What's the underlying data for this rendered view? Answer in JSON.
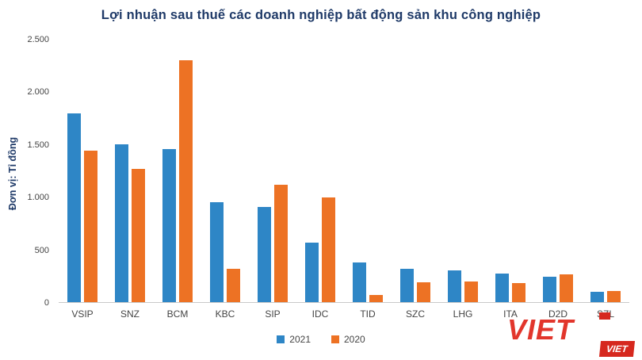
{
  "title": "Lợi nhuận sau thuế các doanh nghiệp bất động sản khu công nghiệp",
  "ylabel": "Đơn vị: Tỉ đồng",
  "chart_data": {
    "type": "bar",
    "categories": [
      "VSIP",
      "SNZ",
      "BCM",
      "KBC",
      "SIP",
      "IDC",
      "TID",
      "SZC",
      "LHG",
      "ITA",
      "D2D",
      "SZL"
    ],
    "series": [
      {
        "name": "2021",
        "color": "#2e86c6",
        "values": [
          1800,
          1500,
          1460,
          950,
          910,
          570,
          380,
          320,
          300,
          270,
          245,
          100
        ]
      },
      {
        "name": "2020",
        "color": "#ed7224",
        "values": [
          1440,
          1270,
          2300,
          320,
          1120,
          1000,
          70,
          190,
          200,
          180,
          265,
          105
        ]
      }
    ],
    "title": "Lợi nhuận sau thuế các doanh nghiệp bất động sản khu công nghiệp",
    "xlabel": "",
    "ylabel": "Đơn vị: Tỉ đồng",
    "ylim": [
      0,
      2500
    ],
    "ytick_step": 500,
    "ytick_labels": [
      "0",
      "500",
      "1.000",
      "1.500",
      "2.000",
      "2.500"
    ],
    "grid": false,
    "legend_position": "bottom"
  },
  "watermark": {
    "big_text": "VIET",
    "badge_text": "VIET",
    "color": "#e2362c"
  }
}
